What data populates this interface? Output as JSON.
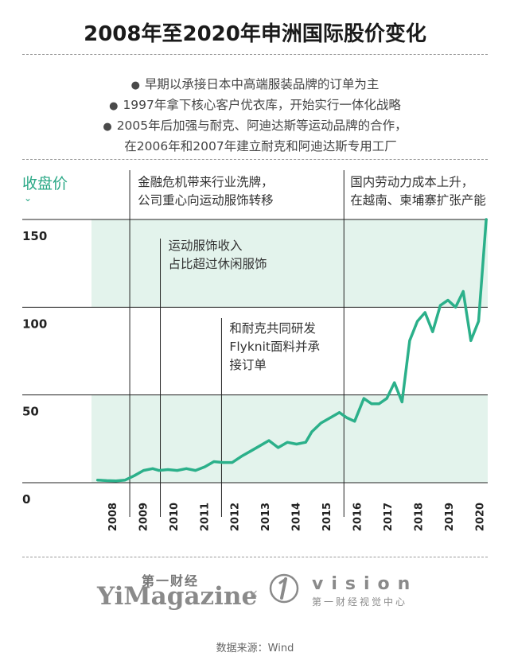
{
  "title": "2008年至2020年申洲国际股价变化",
  "notes": [
    "早期以承接日本中高端服装品牌的订单为主",
    "1997年拿下核心客户优衣库，开始实行一体化战略",
    "2005年后加强与耐克、阿迪达斯等运动品牌的合作，",
    "在2006年和2007年建立耐克和阿迪达斯专用工厂"
  ],
  "bullet": "●",
  "logos": {
    "yimagazine_cn": "第一财经",
    "yimagazine_en": "YiMagazine",
    "separator": "×",
    "vision_en": "vision",
    "vision_cn": "第一财经视觉中心"
  },
  "source": "数据来源：Wind",
  "colors": {
    "accent": "#2aa886",
    "band": "#e3f3ec",
    "line": "#2bb08a"
  },
  "chart_data": {
    "type": "line",
    "ylabel": "收盘价",
    "ylim": [
      0,
      150
    ],
    "yticks": [
      0,
      50,
      100,
      150
    ],
    "grid": true,
    "shaded_bands": [
      [
        0,
        50
      ],
      [
        100,
        150
      ]
    ],
    "xticks": [
      "2008",
      "2009",
      "2010",
      "2011",
      "2012",
      "2013",
      "2014",
      "2015",
      "2016",
      "2017",
      "2018",
      "2019",
      "2020"
    ],
    "series": [
      {
        "name": "",
        "x": [
          2008.0,
          2008.3,
          2008.6,
          2008.9,
          2009.2,
          2009.5,
          2009.8,
          2010.0,
          2010.3,
          2010.6,
          2010.9,
          2011.2,
          2011.5,
          2011.8,
          2012.1,
          2012.4,
          2012.7,
          2013.0,
          2013.3,
          2013.6,
          2013.9,
          2014.2,
          2014.5,
          2014.8,
          2015.0,
          2015.3,
          2015.6,
          2015.9,
          2016.15,
          2016.4,
          2016.7,
          2016.95,
          2017.2,
          2017.45,
          2017.7,
          2017.95,
          2018.2,
          2018.45,
          2018.7,
          2018.95,
          2019.2,
          2019.45,
          2019.7,
          2019.95,
          2020.2,
          2020.45,
          2020.7
        ],
        "y": [
          1.5,
          1.2,
          1.0,
          1.5,
          4.0,
          7.0,
          8.0,
          7.0,
          7.5,
          7.0,
          8.0,
          7.0,
          9.0,
          12.0,
          11.5,
          11.5,
          15.0,
          18.0,
          21.0,
          24.0,
          20.0,
          23.0,
          22.0,
          23.0,
          29.0,
          34.0,
          37.0,
          40.0,
          37.0,
          35.0,
          48.0,
          45.0,
          45.0,
          48.0,
          57.0,
          46.0,
          81.0,
          92.0,
          97.0,
          86.0,
          101.0,
          104.0,
          100.0,
          109.0,
          81.0,
          92.0,
          150.0
        ]
      }
    ],
    "annotations": [
      {
        "x": 2009,
        "text": [
          "金融危机带来行业洗牌，",
          "公司重心向运动服饰转移"
        ]
      },
      {
        "x": 2010,
        "text": [
          "运动服饰收入",
          "占比超过休闲服饰"
        ]
      },
      {
        "x": 2012,
        "text": [
          "和耐克共同研发",
          "Flyknit面料并承",
          "接订单"
        ]
      },
      {
        "x": 2016,
        "text": [
          "国内劳动力成本上升，",
          "在越南、柬埔寨扩张产能"
        ]
      }
    ]
  }
}
